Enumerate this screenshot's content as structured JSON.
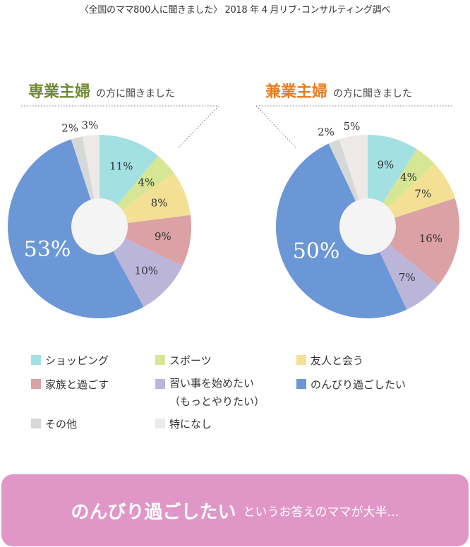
{
  "source_note": "〈全国のママ800人に聞きました〉 2018 年 4 月リブ･コンサルティング調べ",
  "headings": {
    "left": {
      "big": "専業主婦",
      "small": "の方に聞きました"
    },
    "right": {
      "big": "兼業主婦",
      "small": "の方に聞きました"
    }
  },
  "colors": {
    "shopping": "#a3e0e2",
    "sports": "#d6e694",
    "friends": "#f3e094",
    "family": "#dba1a4",
    "lessons": "#bbb6d9",
    "relax": "#6b97d6",
    "other": "#d6d8d8",
    "nothing": "#ede9e6",
    "hole": "#f4f4f4",
    "banner": "#e097c8"
  },
  "legend": [
    {
      "key": "shopping",
      "label": "ショッピング"
    },
    {
      "key": "sports",
      "label": "スポーツ"
    },
    {
      "key": "friends",
      "label": "友人と会う"
    },
    {
      "key": "family",
      "label": "家族と過ごす"
    },
    {
      "key": "lessons",
      "label": "習い事を始めたい",
      "label2": "（もっとやりたい）"
    },
    {
      "key": "relax",
      "label": "のんびり過ごしたい"
    },
    {
      "key": "other",
      "label": "その他"
    },
    {
      "key": "nothing",
      "label": "特になし"
    }
  ],
  "banner": {
    "bold": "のんびり過ごしたい",
    "rest": "というお答えのママが大半…"
  },
  "chart_data": [
    {
      "type": "pie",
      "title": "専業主婦の方に聞きました",
      "categories": [
        "ショッピング",
        "スポーツ",
        "友人と会う",
        "家族と過ごす",
        "習い事を始めたい（もっとやりたい）",
        "のんびり過ごしたい",
        "その他",
        "特になし"
      ],
      "values": [
        11,
        4,
        8,
        9,
        10,
        53,
        2,
        3
      ],
      "labels": [
        "11%",
        "4%",
        "8%",
        "9%",
        "10%",
        "53%",
        "2%",
        "3%"
      ],
      "donut": true
    },
    {
      "type": "pie",
      "title": "兼業主婦の方に聞きました",
      "categories": [
        "ショッピング",
        "スポーツ",
        "友人と会う",
        "家族と過ごす",
        "習い事を始めたい（もっとやりたい）",
        "のんびり過ごしたい",
        "その他",
        "特になし"
      ],
      "values": [
        9,
        4,
        7,
        16,
        7,
        50,
        2,
        5
      ],
      "labels": [
        "9%",
        "4%",
        "7%",
        "16%",
        "7%",
        "50%",
        "2%",
        "5%"
      ],
      "donut": true
    }
  ]
}
